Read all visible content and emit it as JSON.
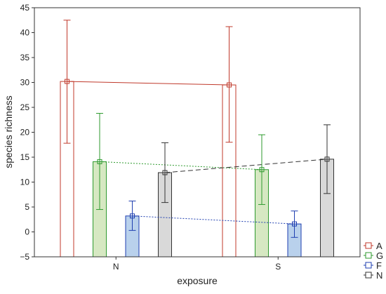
{
  "chart_data": {
    "type": "bar",
    "xlabel": "exposure",
    "ylabel": "species richness",
    "ylim": [
      -5,
      45
    ],
    "yticks": [
      -5,
      0,
      5,
      10,
      15,
      20,
      25,
      30,
      35,
      40,
      45
    ],
    "categories": [
      "N",
      "S"
    ],
    "grid": false,
    "legend_placement": "bottom-right",
    "series": [
      {
        "name": "A",
        "color": "#c0392b",
        "fill": "#ffffff",
        "line_style": "solid",
        "values": [
          30.2,
          29.5
        ],
        "ci_low": [
          17.8,
          18.0
        ],
        "ci_high": [
          42.5,
          41.2
        ]
      },
      {
        "name": "G",
        "color": "#2e9a2e",
        "fill": "#d6e8c2",
        "line_style": "dotted",
        "values": [
          14.1,
          12.5
        ],
        "ci_low": [
          4.5,
          5.5
        ],
        "ci_high": [
          23.8,
          19.5
        ]
      },
      {
        "name": "F",
        "color": "#1f3fb0",
        "fill": "#b9d1ec",
        "line_style": "dotted",
        "values": [
          3.2,
          1.6
        ],
        "ci_low": [
          0.3,
          -1.1
        ],
        "ci_high": [
          6.2,
          4.2
        ]
      },
      {
        "name": "N",
        "color": "#333333",
        "fill": "#d9d9d9",
        "line_style": "dashed",
        "values": [
          11.9,
          14.6
        ],
        "ci_low": [
          5.9,
          7.7
        ],
        "ci_high": [
          17.9,
          21.5
        ]
      }
    ]
  }
}
